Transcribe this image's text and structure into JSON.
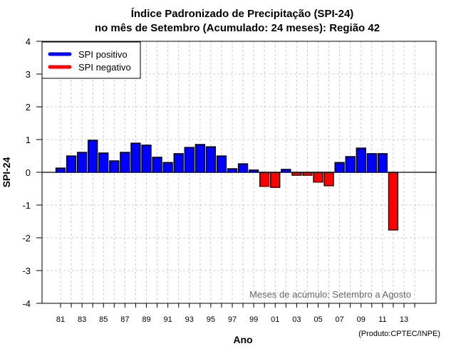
{
  "chart_data": {
    "type": "bar",
    "title_line1": "Índice Padronizado de Precipitação (SPI-24)",
    "title_line2": "no mês de Setembro (Acumulado: 24 meses): Região 42",
    "xlabel": "Ano",
    "ylabel": "SPI-24",
    "ylim": [
      -4,
      4
    ],
    "yticks": [
      "4",
      "3",
      "2",
      "1",
      "0",
      "-1",
      "-2",
      "-3",
      "-4"
    ],
    "ytick_values": [
      4,
      3,
      2,
      1,
      0,
      -1,
      -2,
      -3,
      -4
    ],
    "xlim": [
      1980,
      2015
    ],
    "xtick_labels": [
      "81",
      "83",
      "85",
      "87",
      "89",
      "91",
      "93",
      "95",
      "97",
      "99",
      "01",
      "03",
      "05",
      "07",
      "09",
      "11",
      "13"
    ],
    "xtick_years": [
      1981,
      1983,
      1985,
      1987,
      1989,
      1991,
      1993,
      1995,
      1997,
      1999,
      2001,
      2003,
      2005,
      2007,
      2009,
      2011,
      2013
    ],
    "grid": true,
    "years": [
      1981,
      1982,
      1983,
      1984,
      1985,
      1986,
      1987,
      1988,
      1989,
      1990,
      1991,
      1992,
      1993,
      1994,
      1995,
      1996,
      1997,
      1998,
      1999,
      2000,
      2001,
      2002,
      2003,
      2004,
      2005,
      2006,
      2007,
      2008,
      2009,
      2010,
      2011,
      2012
    ],
    "values": [
      0.13,
      0.5,
      0.61,
      0.98,
      0.59,
      0.35,
      0.61,
      0.89,
      0.83,
      0.46,
      0.3,
      0.57,
      0.76,
      0.85,
      0.78,
      0.5,
      0.11,
      0.26,
      0.07,
      -0.43,
      -0.46,
      0.09,
      -0.09,
      -0.09,
      -0.3,
      -0.41,
      0.3,
      0.48,
      0.74,
      0.57,
      0.57,
      -1.76
    ],
    "colors": {
      "positive": "#0000ff",
      "negative": "#ff0000"
    },
    "legend": {
      "position": "top-left",
      "entries": [
        {
          "label": "SPI positivo",
          "color": "#0000ff"
        },
        {
          "label": "SPI negativo",
          "color": "#ff0000"
        }
      ]
    },
    "annotation": "Meses de acúmulo: Setembro a Agosto",
    "credit": "(Produto:CPTEC/INPE)"
  }
}
